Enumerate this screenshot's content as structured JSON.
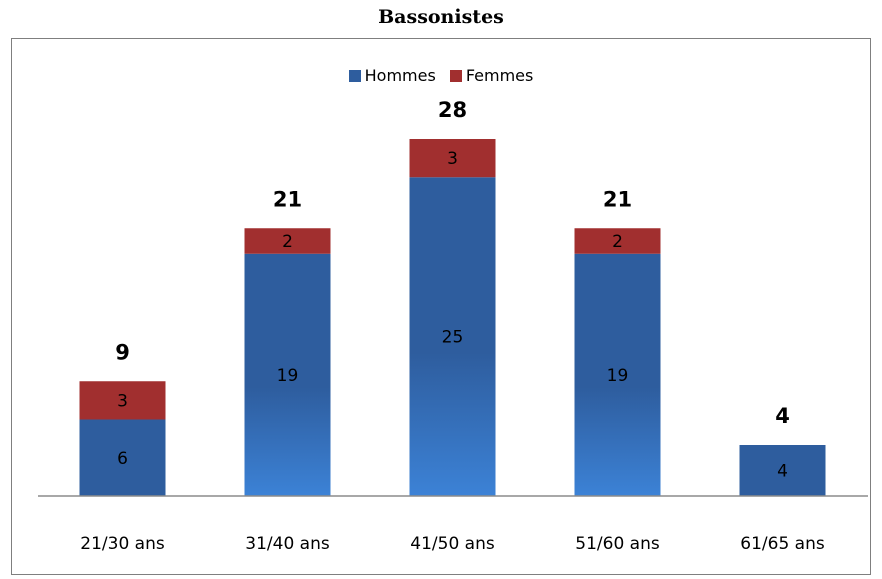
{
  "chart_data": {
    "type": "bar",
    "stacked": true,
    "title": "Bassonistes",
    "categories": [
      "21/30 ans",
      "31/40 ans",
      "41/50 ans",
      "51/60 ans",
      "61/65 ans"
    ],
    "series": [
      {
        "name": "Hommes",
        "color": "#2e5d9e",
        "values": [
          6,
          19,
          25,
          19,
          4
        ]
      },
      {
        "name": "Femmes",
        "color": "#a12f2f",
        "values": [
          3,
          2,
          3,
          2,
          0
        ]
      }
    ],
    "totals": [
      9,
      21,
      28,
      21,
      4
    ],
    "xlabel": "",
    "ylabel": "",
    "ylim": [
      0,
      33
    ],
    "legend_position": "top-center",
    "grid": false
  }
}
